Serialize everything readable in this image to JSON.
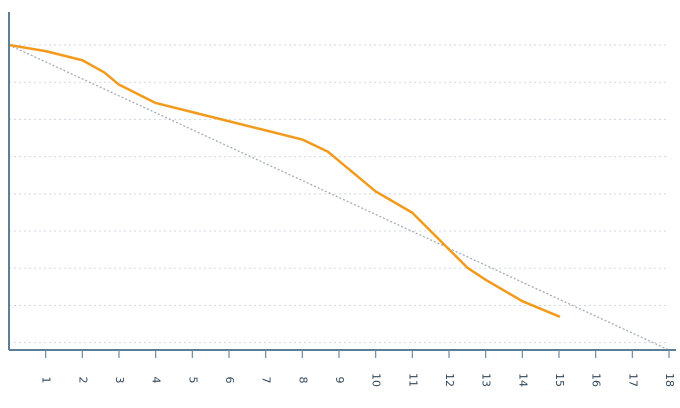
{
  "chart_data": {
    "type": "line",
    "title": "",
    "xlabel": "",
    "ylabel": "",
    "grid": true,
    "xlim": [
      0,
      18
    ],
    "ylim": [
      0,
      100
    ],
    "x_ticks": [
      1,
      2,
      3,
      4,
      5,
      6,
      7,
      8,
      9,
      10,
      11,
      12,
      13,
      14,
      15,
      16,
      17,
      18
    ],
    "series": [
      {
        "style": "dotted",
        "color": "#a6adb3",
        "x": [
          0,
          18
        ],
        "y": [
          100,
          0
        ]
      },
      {
        "style": "solid",
        "color": "#f39a1d",
        "x": [
          0,
          1,
          2,
          2.6,
          3,
          4,
          5,
          6,
          7,
          8,
          8.7,
          9,
          10,
          11,
          12,
          12.5,
          13,
          14,
          15
        ],
        "y": [
          100,
          98,
          95,
          91,
          87,
          81,
          78,
          75,
          72,
          69,
          65,
          62,
          52,
          45,
          33,
          27,
          23,
          16,
          11
        ]
      }
    ]
  }
}
